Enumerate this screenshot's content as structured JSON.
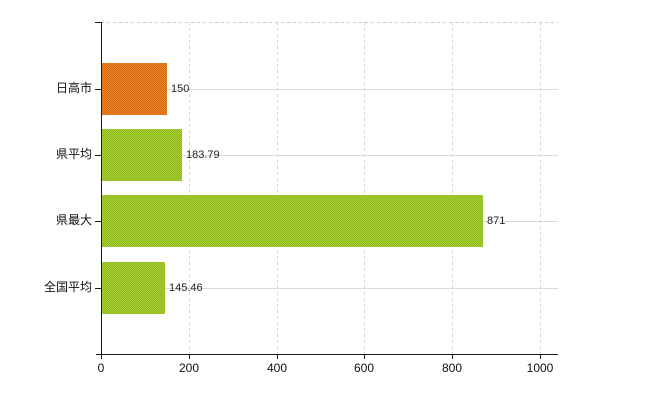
{
  "chart_data": {
    "type": "bar",
    "orientation": "horizontal",
    "title": "",
    "xlabel": "",
    "ylabel": "",
    "categories": [
      "日高市",
      "県平均",
      "県最大",
      "全国平均"
    ],
    "values": [
      150,
      183.79,
      871,
      145.46
    ],
    "value_labels": [
      "150",
      "183.79",
      "871",
      "145.46"
    ],
    "xlim": [
      0,
      1000
    ],
    "xticks": [
      0,
      200,
      400,
      600,
      800,
      1000
    ],
    "xtick_labels": [
      "0",
      "200",
      "400",
      "600",
      "800",
      "1000"
    ],
    "grid": "on",
    "legend": "none",
    "bar_styles": [
      {
        "name": "highlight-orange",
        "base": "#e0771d",
        "dither": [
          "#ea8525",
          "#d96a13"
        ]
      },
      {
        "name": "default-green",
        "base": "#9ac428",
        "dither": [
          "#a8ce33",
          "#8aba1d"
        ]
      },
      {
        "name": "default-green",
        "base": "#9ac428",
        "dither": [
          "#a8ce33",
          "#8aba1d"
        ]
      },
      {
        "name": "default-green",
        "base": "#9ac428",
        "dither": [
          "#a8ce33",
          "#8aba1d"
        ]
      }
    ],
    "colors": {
      "axis": "#1a1a1a",
      "vertical_gridline": "#d6d6d6",
      "horizontal_gridline": "#d6ddd2",
      "top_border": "#c9c9c9",
      "background": "#ffffff",
      "label_text": "#111111"
    }
  }
}
